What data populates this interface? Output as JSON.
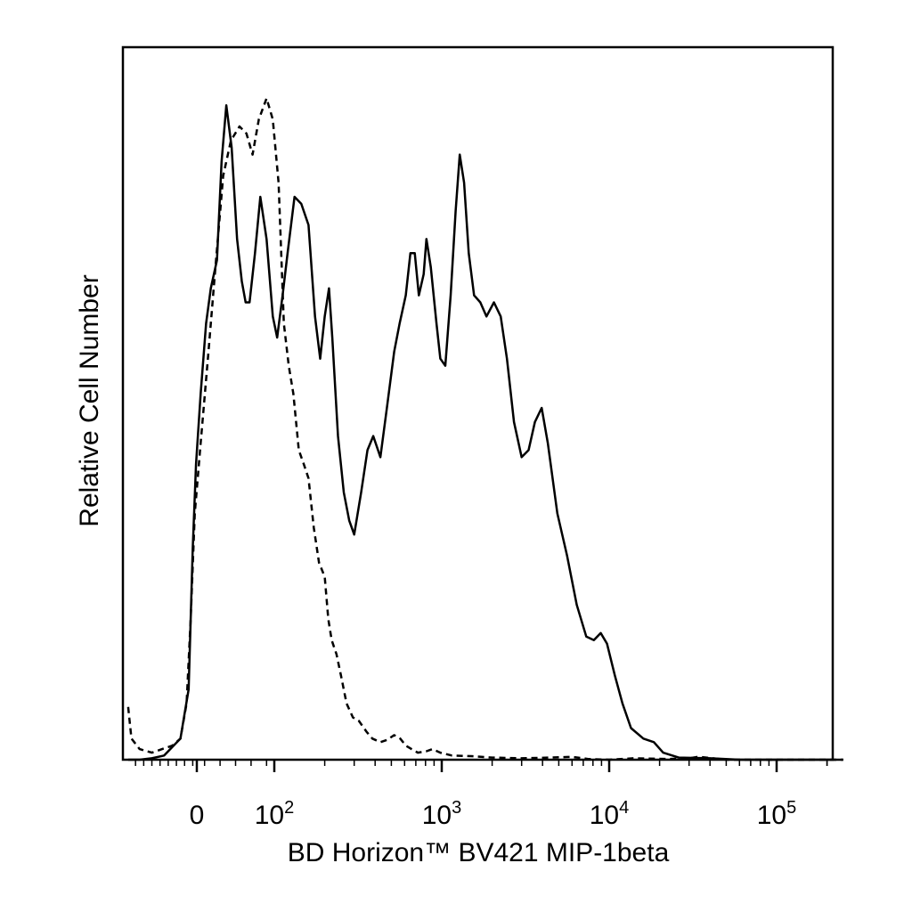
{
  "chart_data": {
    "type": "line",
    "title": "",
    "xlabel": "BD Horizon™ BV421 MIP-1beta",
    "ylabel": "Relative Cell Number",
    "x_scale": "biexponential (linear near 0, log above ~10^2)",
    "xlim": [
      -170,
      260000
    ],
    "ylim": [
      0,
      100
    ],
    "grid": false,
    "legend": "none",
    "x_ticks": [
      {
        "value": 0,
        "base": "0",
        "exp": ""
      },
      {
        "value": 100,
        "base": "10",
        "exp": "2"
      },
      {
        "value": 1000,
        "base": "10",
        "exp": "3"
      },
      {
        "value": 10000,
        "base": "10",
        "exp": "4"
      },
      {
        "value": 100000,
        "base": "10",
        "exp": "5"
      }
    ],
    "series": [
      {
        "style": "solid",
        "color": "#000000",
        "points": [
          [
            -168,
            0.0
          ],
          [
            -140,
            0.0
          ],
          [
            -110,
            0.2
          ],
          [
            -80,
            0.6
          ],
          [
            -40,
            3.0
          ],
          [
            -20,
            10.0
          ],
          [
            -10,
            30.0
          ],
          [
            -2,
            42.0
          ],
          [
            5,
            52.0
          ],
          [
            12,
            62.0
          ],
          [
            18,
            67.0
          ],
          [
            26,
            71.0
          ],
          [
            32,
            85.0
          ],
          [
            38,
            93.0
          ],
          [
            45,
            87.0
          ],
          [
            52,
            74.0
          ],
          [
            58,
            68.0
          ],
          [
            63,
            65.0
          ],
          [
            68,
            65.0
          ],
          [
            75,
            72.0
          ],
          [
            82,
            80.0
          ],
          [
            90,
            74.0
          ],
          [
            98,
            63.0
          ],
          [
            104,
            60.0
          ],
          [
            112,
            66.0
          ],
          [
            120,
            72.0
          ],
          [
            132,
            80.0
          ],
          [
            145,
            79.0
          ],
          [
            160,
            76.0
          ],
          [
            175,
            63.0
          ],
          [
            188,
            57.0
          ],
          [
            200,
            63.0
          ],
          [
            212,
            67.0
          ],
          [
            222,
            60.0
          ],
          [
            240,
            46.0
          ],
          [
            260,
            38.0
          ],
          [
            280,
            34.0
          ],
          [
            300,
            32.0
          ],
          [
            330,
            38.0
          ],
          [
            360,
            44.0
          ],
          [
            390,
            46.0
          ],
          [
            430,
            43.0
          ],
          [
            470,
            50.0
          ],
          [
            520,
            58.0
          ],
          [
            560,
            62.0
          ],
          [
            610,
            66.0
          ],
          [
            650,
            72.0
          ],
          [
            690,
            72.0
          ],
          [
            730,
            66.0
          ],
          [
            780,
            69.0
          ],
          [
            810,
            74.0
          ],
          [
            860,
            70.0
          ],
          [
            930,
            62.0
          ],
          [
            980,
            57.0
          ],
          [
            1050,
            56.0
          ],
          [
            1130,
            66.0
          ],
          [
            1210,
            78.0
          ],
          [
            1280,
            86.0
          ],
          [
            1360,
            82.0
          ],
          [
            1450,
            72.0
          ],
          [
            1560,
            66.0
          ],
          [
            1700,
            65.0
          ],
          [
            1850,
            63.0
          ],
          [
            2050,
            65.0
          ],
          [
            2250,
            63.0
          ],
          [
            2450,
            57.0
          ],
          [
            2700,
            48.0
          ],
          [
            3000,
            43.0
          ],
          [
            3300,
            44.0
          ],
          [
            3600,
            48.0
          ],
          [
            3950,
            50.0
          ],
          [
            4300,
            45.0
          ],
          [
            4900,
            35.0
          ],
          [
            5600,
            29.0
          ],
          [
            6400,
            22.0
          ],
          [
            7300,
            17.5
          ],
          [
            8100,
            17.0
          ],
          [
            8900,
            18.0
          ],
          [
            9700,
            16.5
          ],
          [
            10800,
            12.0
          ],
          [
            12000,
            8.0
          ],
          [
            13500,
            4.5
          ],
          [
            16000,
            3.0
          ],
          [
            18500,
            2.5
          ],
          [
            21000,
            1.0
          ],
          [
            26000,
            0.3
          ],
          [
            40000,
            0.2
          ],
          [
            60000,
            0.0
          ],
          [
            140000,
            0.0
          ],
          [
            250000,
            0.0
          ]
        ]
      },
      {
        "style": "dashed",
        "color": "#000000",
        "points": [
          [
            -168,
            7.5
          ],
          [
            -160,
            3.0
          ],
          [
            -140,
            1.5
          ],
          [
            -110,
            1.0
          ],
          [
            -85,
            1.5
          ],
          [
            -60,
            2.0
          ],
          [
            -40,
            3.0
          ],
          [
            -25,
            8.0
          ],
          [
            -15,
            20.0
          ],
          [
            -5,
            35.0
          ],
          [
            5,
            45.0
          ],
          [
            15,
            58.0
          ],
          [
            24,
            70.0
          ],
          [
            34,
            83.0
          ],
          [
            44,
            88.0
          ],
          [
            55,
            90.0
          ],
          [
            64,
            89.0
          ],
          [
            72,
            86.0
          ],
          [
            80,
            91.0
          ],
          [
            90,
            94.0
          ],
          [
            98,
            91.0
          ],
          [
            106,
            82.0
          ],
          [
            114,
            62.0
          ],
          [
            122,
            56.0
          ],
          [
            130,
            52.0
          ],
          [
            140,
            44.0
          ],
          [
            150,
            42.0
          ],
          [
            160,
            40.0
          ],
          [
            172,
            33.0
          ],
          [
            185,
            28.0
          ],
          [
            200,
            26.0
          ],
          [
            210,
            20.0
          ],
          [
            220,
            17.0
          ],
          [
            235,
            15.0
          ],
          [
            250,
            12.0
          ],
          [
            270,
            8.0
          ],
          [
            295,
            6.0
          ],
          [
            320,
            5.5
          ],
          [
            355,
            4.0
          ],
          [
            385,
            3.0
          ],
          [
            430,
            2.5
          ],
          [
            470,
            2.8
          ],
          [
            520,
            3.5
          ],
          [
            565,
            3.0
          ],
          [
            610,
            2.0
          ],
          [
            660,
            1.5
          ],
          [
            720,
            1.0
          ],
          [
            810,
            1.2
          ],
          [
            880,
            1.5
          ],
          [
            980,
            1.0
          ],
          [
            1150,
            0.6
          ],
          [
            1500,
            0.5
          ],
          [
            2000,
            0.3
          ],
          [
            3000,
            0.2
          ],
          [
            4500,
            0.3
          ],
          [
            6000,
            0.4
          ],
          [
            7500,
            0.1
          ],
          [
            10000,
            0.0
          ],
          [
            14000,
            0.2
          ],
          [
            22000,
            0.1
          ],
          [
            30000,
            0.2
          ],
          [
            34000,
            0.4
          ],
          [
            38000,
            0.3
          ],
          [
            50000,
            0.0
          ],
          [
            250000,
            0.0
          ]
        ]
      }
    ]
  }
}
